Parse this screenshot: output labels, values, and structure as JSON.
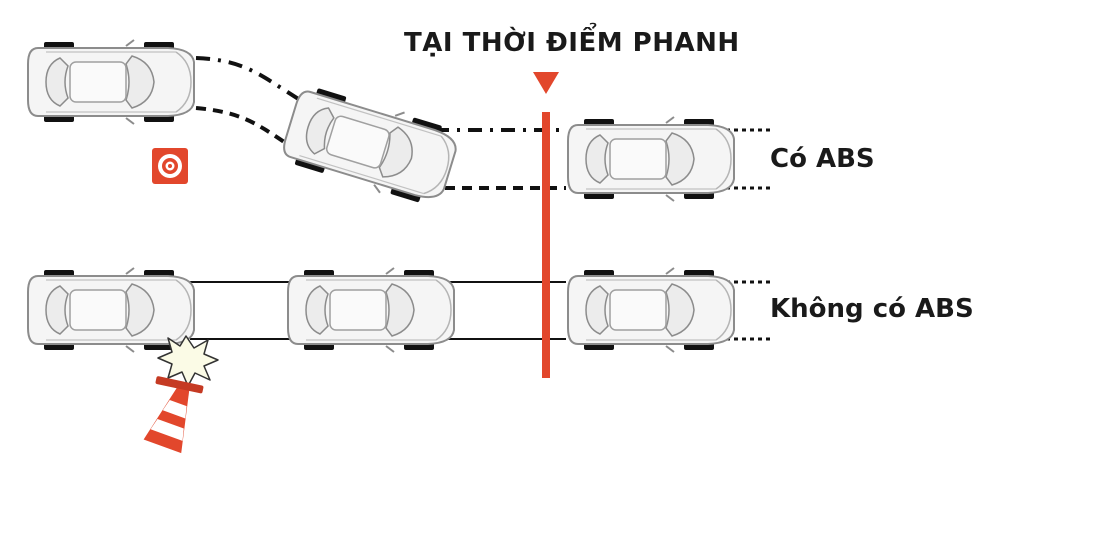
{
  "title": "TẠI THỜI ĐIỂM PHANH",
  "labels": {
    "with_abs": "Có ABS",
    "without_abs": "Không có ABS"
  },
  "colors": {
    "accent": "#e2472c",
    "track": "#111111",
    "car_body": "#f4f4f4",
    "car_outline": "#8a8a8a",
    "tire": "#111111"
  },
  "icons": {
    "obstacle": "target-icon",
    "impact": "collision-burst-icon",
    "fallen_cone": "traffic-cone-icon"
  }
}
